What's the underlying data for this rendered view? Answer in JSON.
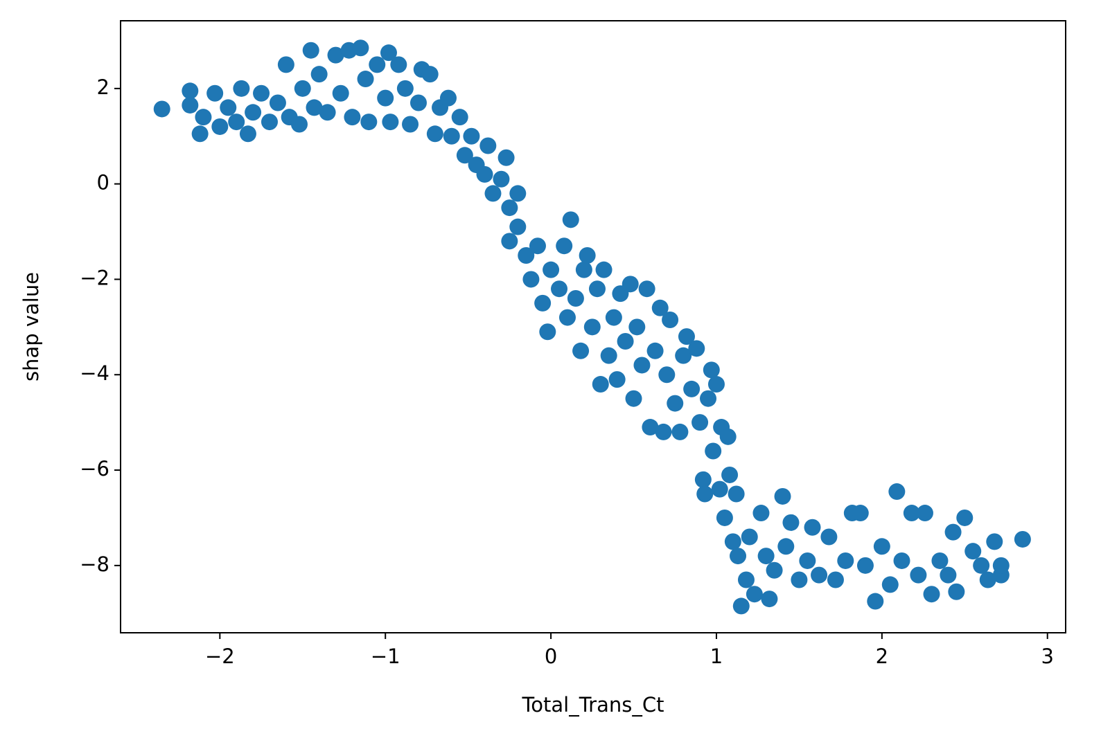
{
  "chart_data": {
    "type": "scatter",
    "xlabel": "Total_Trans_Ct",
    "ylabel": "shap value",
    "xlim": [
      -2.6,
      3.11
    ],
    "ylim": [
      -9.41,
      3.42
    ],
    "xticks": [
      {
        "value": -2,
        "label": "−2"
      },
      {
        "value": -1,
        "label": "−1"
      },
      0,
      1,
      2,
      3
    ],
    "yticks": [
      {
        "value": -8,
        "label": "−8"
      },
      {
        "value": -6,
        "label": "−6"
      },
      {
        "value": -4,
        "label": "−4"
      },
      {
        "value": -2,
        "label": "−2"
      },
      0,
      2
    ],
    "grid": false,
    "series": [
      {
        "color": "#1f77b4",
        "x": [
          -2.35,
          -2.18,
          -2.18,
          -2.12,
          -2.1,
          -2.03,
          -2.0,
          -1.95,
          -1.9,
          -1.87,
          -1.83,
          -1.8,
          -1.75,
          -1.7,
          -1.65,
          -1.6,
          -1.58,
          -1.52,
          -1.5,
          -1.45,
          -1.43,
          -1.4,
          -1.35,
          -1.3,
          -1.27,
          -1.22,
          -1.2,
          -1.15,
          -1.12,
          -1.1,
          -1.05,
          -1.0,
          -0.98,
          -0.97,
          -0.92,
          -0.88,
          -0.85,
          -0.8,
          -0.78,
          -0.73,
          -0.7,
          -0.67,
          -0.62,
          -0.6,
          -0.55,
          -0.52,
          -0.48,
          -0.45,
          -0.4,
          -0.38,
          -0.35,
          -0.3,
          -0.27,
          -0.25,
          -0.2,
          -0.25,
          -0.2,
          -0.15,
          -0.12,
          -0.08,
          -0.05,
          -0.02,
          0.0,
          0.05,
          0.08,
          0.1,
          0.12,
          0.15,
          0.18,
          0.2,
          0.22,
          0.25,
          0.28,
          0.3,
          0.32,
          0.35,
          0.38,
          0.4,
          0.42,
          0.45,
          0.48,
          0.5,
          0.52,
          0.55,
          0.58,
          0.6,
          0.63,
          0.66,
          0.68,
          0.7,
          0.72,
          0.75,
          0.78,
          0.8,
          0.82,
          0.85,
          0.88,
          0.9,
          0.92,
          0.93,
          0.95,
          0.97,
          0.98,
          1.0,
          1.02,
          1.03,
          1.05,
          1.07,
          1.08,
          1.1,
          1.12,
          1.13,
          1.15,
          1.18,
          1.2,
          1.23,
          1.27,
          1.3,
          1.32,
          1.35,
          1.4,
          1.42,
          1.45,
          1.5,
          1.55,
          1.58,
          1.62,
          1.68,
          1.72,
          1.78,
          1.82,
          1.87,
          1.9,
          1.96,
          2.0,
          2.05,
          2.09,
          2.12,
          2.18,
          2.22,
          2.26,
          2.3,
          2.35,
          2.4,
          2.43,
          2.45,
          2.5,
          2.55,
          2.6,
          2.64,
          2.68,
          2.72,
          2.72,
          2.85
        ],
        "values": [
          1.57,
          1.95,
          1.65,
          1.05,
          1.4,
          1.9,
          1.2,
          1.6,
          1.3,
          2.0,
          1.05,
          1.5,
          1.9,
          1.3,
          1.7,
          2.5,
          1.4,
          1.25,
          2.0,
          2.8,
          1.6,
          2.3,
          1.5,
          2.7,
          1.9,
          2.8,
          1.4,
          2.85,
          2.2,
          1.3,
          2.5,
          1.8,
          2.75,
          1.3,
          2.5,
          2.0,
          1.25,
          1.7,
          2.4,
          2.3,
          1.05,
          1.6,
          1.8,
          1.0,
          1.4,
          0.6,
          1.0,
          0.4,
          0.2,
          0.8,
          -0.2,
          0.1,
          0.55,
          -0.5,
          -0.2,
          -1.2,
          -0.9,
          -1.5,
          -2.0,
          -1.3,
          -2.5,
          -3.1,
          -1.8,
          -2.2,
          -1.3,
          -2.8,
          -0.75,
          -2.4,
          -3.5,
          -1.8,
          -1.5,
          -3.0,
          -2.2,
          -4.2,
          -1.8,
          -3.6,
          -2.8,
          -4.1,
          -2.3,
          -3.3,
          -2.1,
          -4.5,
          -3.0,
          -3.8,
          -2.2,
          -5.1,
          -3.5,
          -2.6,
          -5.2,
          -4.0,
          -2.85,
          -4.6,
          -5.2,
          -3.6,
          -3.2,
          -4.3,
          -3.45,
          -5.0,
          -6.2,
          -6.5,
          -4.5,
          -3.9,
          -5.6,
          -4.2,
          -6.4,
          -5.1,
          -7.0,
          -5.3,
          -6.1,
          -7.5,
          -6.5,
          -7.8,
          -8.85,
          -8.3,
          -7.4,
          -8.6,
          -6.9,
          -7.8,
          -8.7,
          -8.1,
          -6.55,
          -7.6,
          -7.1,
          -8.3,
          -7.9,
          -7.2,
          -8.2,
          -7.4,
          -8.3,
          -7.9,
          -6.9,
          -6.9,
          -8.0,
          -8.75,
          -7.6,
          -8.4,
          -6.45,
          -7.9,
          -6.9,
          -8.2,
          -6.9,
          -8.6,
          -7.9,
          -8.2,
          -7.3,
          -8.55,
          -7.0,
          -7.7,
          -8.0,
          -8.3,
          -7.5,
          -8.2,
          -8.0,
          -7.45
        ]
      }
    ]
  }
}
